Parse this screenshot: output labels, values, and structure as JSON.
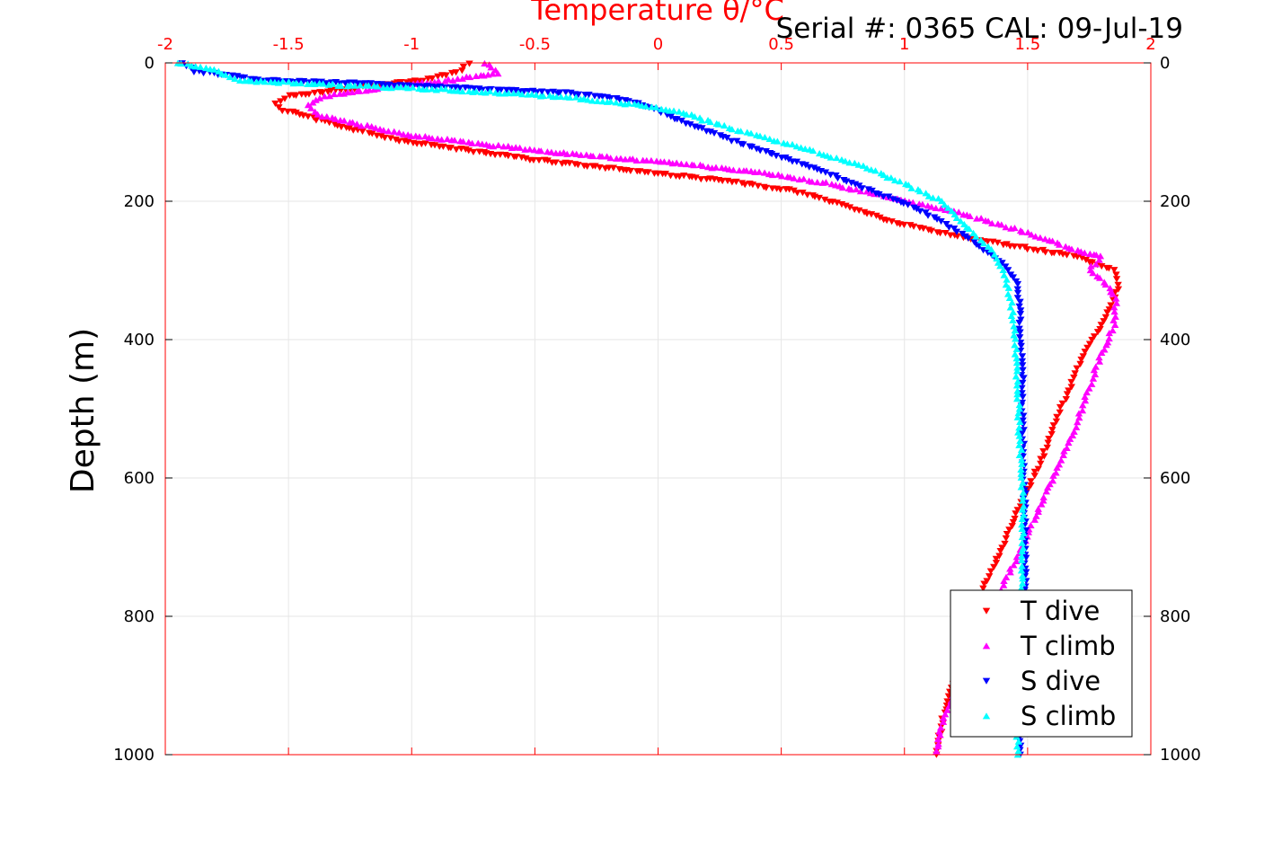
{
  "chart_data": {
    "type": "scatter",
    "title": "Temperature θ/°C",
    "header_text": "Serial #: 0365  CAL: 09-Jul-19",
    "xlabel": "Temperature θ/°C",
    "ylabel": "Depth (m)",
    "xlim": [
      -2,
      2
    ],
    "ylim": [
      0,
      1000
    ],
    "y_reversed": true,
    "grid": true,
    "legend_position": "bottom-right",
    "x_ticks": [
      "-2",
      "-1.5",
      "-1",
      "-0.5",
      "0",
      "0.5",
      "1",
      "1.5",
      "2"
    ],
    "y_ticks": [
      "0",
      "200",
      "400",
      "600",
      "800",
      "1000"
    ],
    "colors": {
      "axis_x": "#ff0000",
      "T dive": "#ff0000",
      "T climb": "#ff00ff",
      "S dive": "#0000ff",
      "S climb": "#00ffff"
    },
    "series": [
      {
        "name": "T dive",
        "marker": "triangle-down",
        "color": "#ff0000",
        "points": [
          [
            -0.77,
            0
          ],
          [
            -0.8,
            12
          ],
          [
            -0.95,
            25
          ],
          [
            -1.2,
            35
          ],
          [
            -1.5,
            48
          ],
          [
            -1.55,
            58
          ],
          [
            -1.52,
            68
          ],
          [
            -1.4,
            80
          ],
          [
            -1.25,
            95
          ],
          [
            -1.05,
            112
          ],
          [
            -0.8,
            125
          ],
          [
            -0.5,
            140
          ],
          [
            -0.25,
            150
          ],
          [
            0,
            160
          ],
          [
            0.3,
            172
          ],
          [
            0.55,
            185
          ],
          [
            0.75,
            205
          ],
          [
            0.95,
            230
          ],
          [
            1.2,
            250
          ],
          [
            1.45,
            265
          ],
          [
            1.7,
            280
          ],
          [
            1.85,
            300
          ],
          [
            1.87,
            320
          ],
          [
            1.84,
            350
          ],
          [
            1.78,
            390
          ],
          [
            1.72,
            430
          ],
          [
            1.66,
            480
          ],
          [
            1.6,
            530
          ],
          [
            1.55,
            580
          ],
          [
            1.47,
            640
          ],
          [
            1.4,
            700
          ],
          [
            1.32,
            760
          ],
          [
            1.26,
            820
          ],
          [
            1.21,
            880
          ],
          [
            1.16,
            940
          ],
          [
            1.13,
            1000
          ]
        ]
      },
      {
        "name": "T climb",
        "marker": "triangle-up",
        "color": "#ff00ff",
        "points": [
          [
            -0.7,
            0
          ],
          [
            -0.65,
            15
          ],
          [
            -0.85,
            25
          ],
          [
            -1.1,
            35
          ],
          [
            -1.35,
            48
          ],
          [
            -1.42,
            60
          ],
          [
            -1.38,
            75
          ],
          [
            -1.2,
            90
          ],
          [
            -1.0,
            105
          ],
          [
            -0.7,
            118
          ],
          [
            -0.4,
            130
          ],
          [
            -0.1,
            140
          ],
          [
            0.15,
            148
          ],
          [
            0.45,
            160
          ],
          [
            0.7,
            175
          ],
          [
            0.95,
            195
          ],
          [
            1.2,
            215
          ],
          [
            1.45,
            240
          ],
          [
            1.65,
            265
          ],
          [
            1.8,
            280
          ],
          [
            1.75,
            300
          ],
          [
            1.82,
            320
          ],
          [
            1.86,
            340
          ],
          [
            1.85,
            380
          ],
          [
            1.8,
            420
          ],
          [
            1.75,
            470
          ],
          [
            1.7,
            520
          ],
          [
            1.63,
            580
          ],
          [
            1.54,
            650
          ],
          [
            1.45,
            720
          ],
          [
            1.35,
            790
          ],
          [
            1.27,
            850
          ],
          [
            1.2,
            910
          ],
          [
            1.15,
            960
          ],
          [
            1.13,
            995
          ]
        ]
      },
      {
        "name": "S dive",
        "marker": "triangle-down",
        "color": "#0000ff",
        "points": [
          [
            -1.93,
            0
          ],
          [
            -1.88,
            12
          ],
          [
            -1.6,
            25
          ],
          [
            -1.2,
            30
          ],
          [
            -0.9,
            35
          ],
          [
            -0.6,
            40
          ],
          [
            -0.3,
            45
          ],
          [
            -0.15,
            52
          ],
          [
            -0.05,
            62
          ],
          [
            0.05,
            78
          ],
          [
            0.18,
            95
          ],
          [
            0.3,
            112
          ],
          [
            0.45,
            130
          ],
          [
            0.6,
            148
          ],
          [
            0.75,
            168
          ],
          [
            0.9,
            190
          ],
          [
            1.05,
            210
          ],
          [
            1.15,
            230
          ],
          [
            1.25,
            250
          ],
          [
            1.32,
            270
          ],
          [
            1.4,
            290
          ],
          [
            1.46,
            320
          ],
          [
            1.47,
            370
          ],
          [
            1.48,
            450
          ],
          [
            1.48,
            550
          ],
          [
            1.49,
            650
          ],
          [
            1.49,
            750
          ],
          [
            1.48,
            850
          ],
          [
            1.47,
            950
          ],
          [
            1.47,
            1000
          ]
        ]
      },
      {
        "name": "S climb",
        "marker": "triangle-up",
        "color": "#00ffff",
        "points": [
          [
            -1.95,
            0
          ],
          [
            -1.8,
            10
          ],
          [
            -1.7,
            25
          ],
          [
            -1.3,
            32
          ],
          [
            -0.9,
            38
          ],
          [
            -0.55,
            45
          ],
          [
            -0.3,
            52
          ],
          [
            -0.1,
            60
          ],
          [
            0.1,
            72
          ],
          [
            0.25,
            90
          ],
          [
            0.45,
            110
          ],
          [
            0.65,
            130
          ],
          [
            0.85,
            152
          ],
          [
            1.0,
            175
          ],
          [
            1.15,
            200
          ],
          [
            1.2,
            220
          ],
          [
            1.28,
            245
          ],
          [
            1.35,
            270
          ],
          [
            1.4,
            300
          ],
          [
            1.43,
            340
          ],
          [
            1.45,
            400
          ],
          [
            1.46,
            480
          ],
          [
            1.47,
            560
          ],
          [
            1.48,
            640
          ],
          [
            1.48,
            720
          ],
          [
            1.47,
            800
          ],
          [
            1.46,
            880
          ],
          [
            1.46,
            950
          ],
          [
            1.46,
            1000
          ]
        ]
      }
    ]
  }
}
